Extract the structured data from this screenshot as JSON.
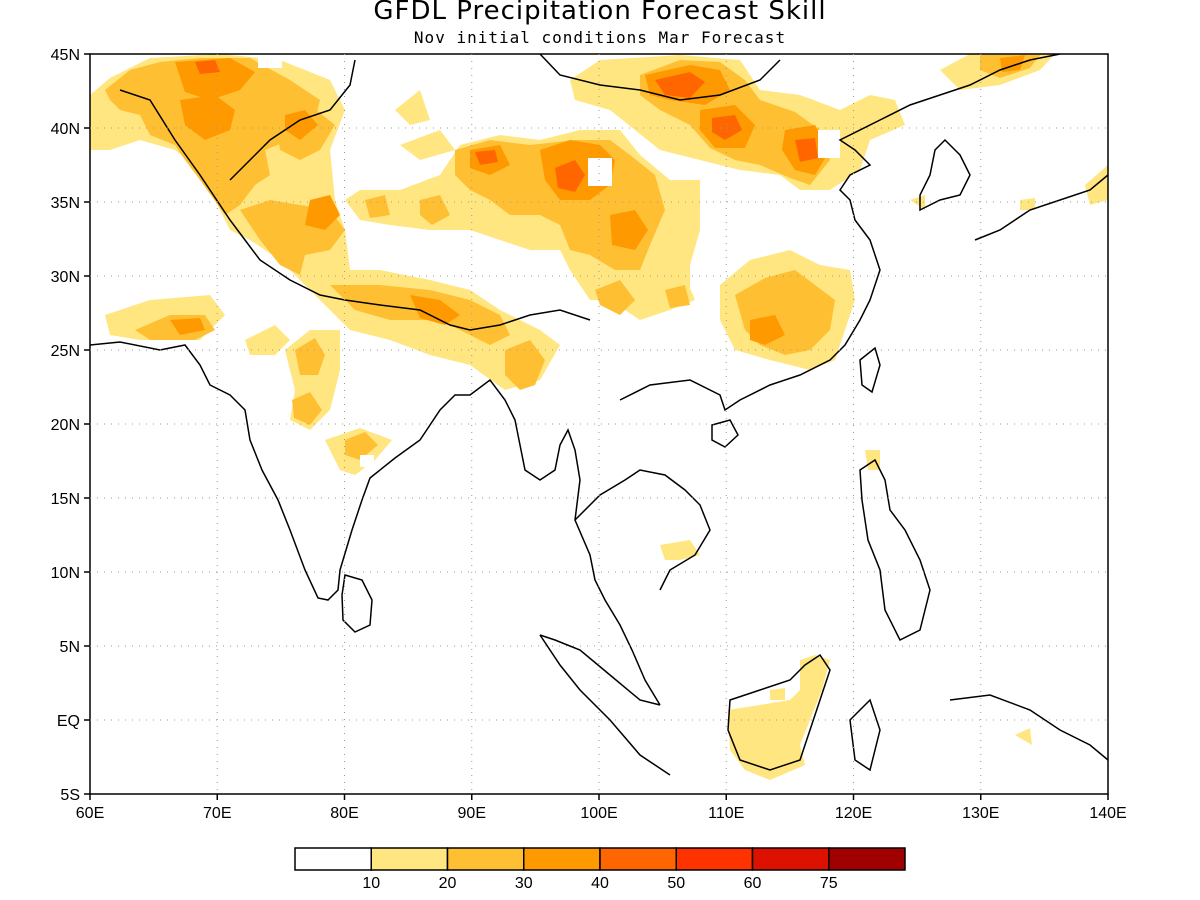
{
  "title": "GFDL Precipitation Forecast Skill",
  "subtitle": "Nov initial conditions  Mar Forecast",
  "map": {
    "lon_range": [
      60,
      140
    ],
    "lat_range": [
      -5,
      45
    ],
    "lat_ticks": [
      "45N",
      "40N",
      "35N",
      "30N",
      "25N",
      "20N",
      "15N",
      "10N",
      "5N",
      "EQ",
      "5S"
    ],
    "lon_ticks": [
      "60E",
      "70E",
      "80E",
      "90E",
      "100E",
      "110E",
      "120E",
      "130E",
      "140E"
    ],
    "gridlines": "dotted"
  },
  "colorbar": {
    "colors": [
      "#ffffff",
      "#ffe680",
      "#ffbf33",
      "#ff9900",
      "#ff6600",
      "#ff3300",
      "#dd1100",
      "#a00000"
    ],
    "labels": [
      "10",
      "20",
      "30",
      "40",
      "50",
      "60",
      "75"
    ]
  }
}
